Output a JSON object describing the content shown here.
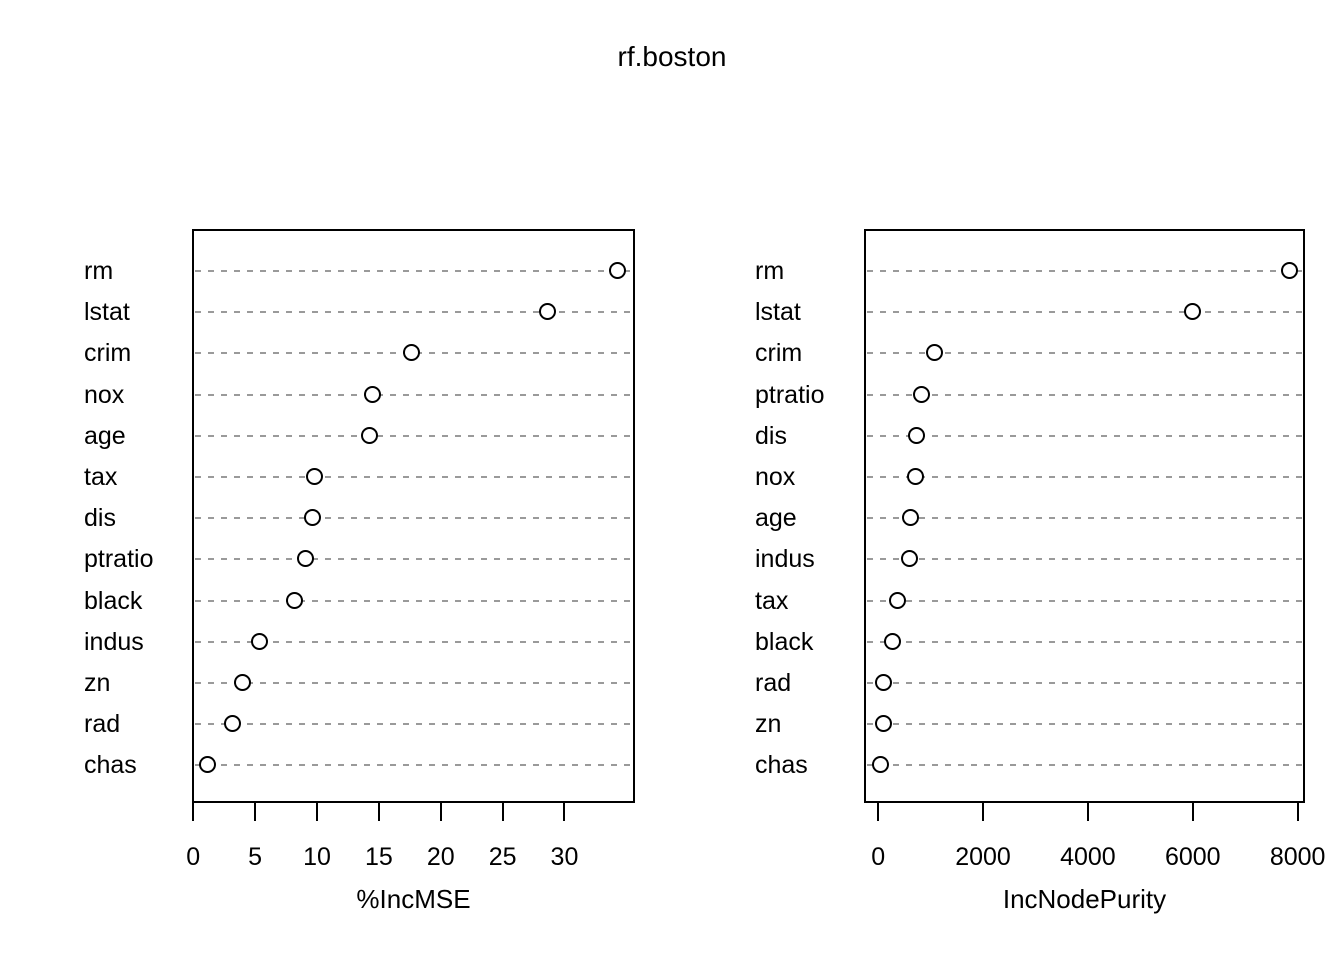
{
  "figure": {
    "title": "rf.boston",
    "background_color": "#ffffff",
    "text_color": "#000000",
    "gridline_color": "#9a9a9a",
    "point_style": "open-circle",
    "point_color": "#000000"
  },
  "chart_data": [
    {
      "type": "scatter",
      "variant": "dot-chart",
      "panel": "left",
      "xlabel": "%IncMSE",
      "categories": [
        "rm",
        "lstat",
        "crim",
        "nox",
        "age",
        "tax",
        "dis",
        "ptratio",
        "black",
        "indus",
        "zn",
        "rad",
        "chas"
      ],
      "values": [
        34.3,
        28.7,
        17.7,
        14.5,
        14.3,
        9.8,
        9.7,
        9.1,
        8.2,
        5.4,
        4.0,
        3.2,
        1.2
      ],
      "xticks": [
        0,
        5,
        10,
        15,
        20,
        25,
        30
      ],
      "xlim": [
        -0.1,
        35.7
      ],
      "grid": "horizontal-dashed",
      "legend": "none"
    },
    {
      "type": "scatter",
      "variant": "dot-chart",
      "panel": "right",
      "xlabel": "IncNodePurity",
      "categories": [
        "rm",
        "lstat",
        "crim",
        "ptratio",
        "dis",
        "nox",
        "age",
        "indus",
        "tax",
        "black",
        "rad",
        "zn",
        "chas"
      ],
      "values": [
        7850,
        6010,
        1090,
        840,
        750,
        730,
        620,
        600,
        380,
        290,
        120,
        110,
        60
      ],
      "xticks": [
        0,
        2000,
        4000,
        6000,
        8000
      ],
      "xlim": [
        -270,
        8140
      ],
      "grid": "horizontal-dashed",
      "legend": "none"
    }
  ]
}
